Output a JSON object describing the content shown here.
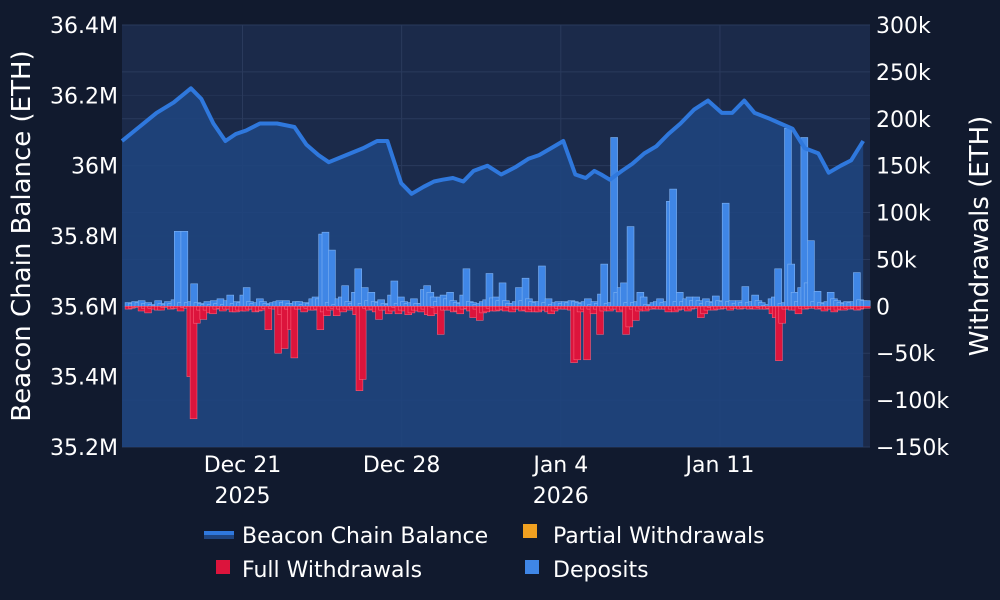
{
  "chart_data": {
    "type": "bar+area",
    "title": "",
    "x_type": "date",
    "x_start": "2025-12-16",
    "x_end": "2026-01-17",
    "x_ticks": [
      {
        "date": "2025-12-21",
        "label": "Dec 21",
        "sublabel": "2025"
      },
      {
        "date": "2025-12-28",
        "label": "Dec 28",
        "sublabel": ""
      },
      {
        "date": "2026-01-04",
        "label": "Jan 4",
        "sublabel": "2026"
      },
      {
        "date": "2026-01-11",
        "label": "Jan 11",
        "sublabel": ""
      }
    ],
    "y_left": {
      "label": "Beacon Chain Balance (ETH)",
      "range": [
        35.2,
        36.4
      ],
      "ticks": [
        36.4,
        36.2,
        36.0,
        35.8,
        35.6,
        35.4,
        35.2
      ],
      "tick_labels": [
        "36.4M",
        "36.2M",
        "36M",
        "35.8M",
        "35.6M",
        "35.4M",
        "35.2M"
      ]
    },
    "y_right": {
      "label": "Withdrawals (ETH)",
      "range": [
        -150,
        300
      ],
      "ticks": [
        300,
        250,
        200,
        150,
        100,
        50,
        0,
        -50,
        -100,
        -150
      ],
      "tick_labels": [
        "300k",
        "250k",
        "200k",
        "150k",
        "100k",
        "50k",
        "0",
        "−50k",
        "−100k",
        "−150k"
      ]
    },
    "balance_series": {
      "name": "Beacon Chain Balance",
      "unit": "M ETH",
      "day_offsets": [
        0,
        1,
        2,
        3,
        4,
        4.6,
        5.3,
        6.0,
        6.6,
        7.2,
        8,
        9,
        10,
        10.7,
        11.4,
        12,
        13,
        14,
        14.8,
        15.4,
        16.2,
        16.8,
        17.5,
        18.1,
        18.6,
        19.2,
        19.8,
        20.4,
        21.2,
        22,
        22.8,
        23.6,
        24.2,
        24.9,
        25.6,
        26.3,
        26.9,
        27.4,
        27.8,
        28.3,
        29,
        29.6,
        30.3,
        31,
        31.7,
        32.4,
        33.2,
        34,
        34.8,
        35.4,
        36.1,
        36.7,
        37.5,
        38.2,
        38.9,
        39.6,
        40.4,
        41,
        41.7,
        42.3,
        43
      ],
      "values": [
        36.07,
        36.11,
        36.15,
        36.18,
        36.22,
        36.19,
        36.12,
        36.07,
        36.09,
        36.1,
        36.12,
        36.12,
        36.11,
        36.06,
        36.03,
        36.01,
        36.03,
        36.05,
        36.07,
        36.07,
        35.95,
        35.92,
        35.94,
        35.955,
        35.96,
        35.965,
        35.955,
        35.985,
        36.0,
        35.975,
        35.995,
        36.02,
        36.03,
        36.05,
        36.07,
        35.975,
        35.965,
        35.985,
        35.975,
        35.96,
        35.985,
        36.005,
        36.035,
        36.055,
        36.09,
        36.12,
        36.16,
        36.185,
        36.15,
        36.15,
        36.185,
        36.15,
        36.135,
        36.12,
        36.105,
        36.05,
        36.035,
        35.98,
        36.0,
        36.015,
        36.07
      ]
    },
    "bars": {
      "x_offset_start": -0.3,
      "step": 0.42,
      "deposits_k": [
        5,
        3,
        4,
        3,
        5,
        4,
        6,
        3,
        4,
        2,
        1,
        6,
        3,
        2,
        5,
        3,
        7,
        80,
        4,
        80,
        4,
        5,
        24,
        4,
        3,
        2,
        5,
        2,
        6,
        3,
        8,
        2,
        6,
        12,
        3,
        5,
        4,
        12,
        20,
        5,
        3,
        4,
        8,
        5,
        3,
        2,
        4,
        5,
        6,
        4,
        6,
        3,
        3,
        5,
        5,
        2,
        4,
        3,
        8,
        10,
        8,
        77,
        79,
        4,
        60,
        2,
        8,
        10,
        22,
        5,
        3,
        15,
        40,
        3,
        20,
        6,
        15,
        5,
        4,
        7,
        3,
        2,
        12,
        27,
        3,
        10,
        5,
        3,
        4,
        8,
        3,
        3,
        18,
        22,
        15,
        10,
        5,
        10,
        12,
        8,
        15,
        6,
        4,
        3,
        12,
        40,
        5,
        4,
        2,
        3,
        5,
        7,
        35,
        9,
        10,
        6,
        25,
        6,
        3,
        3,
        5,
        20,
        6,
        30,
        8,
        5,
        4,
        5,
        43,
        4,
        8,
        2,
        4,
        5,
        3,
        5,
        4,
        6,
        5,
        4,
        3,
        5,
        8,
        2,
        5,
        3,
        13,
        45,
        3,
        4,
        180,
        15,
        20,
        25,
        4,
        85,
        4,
        5,
        15,
        10,
        2,
        1,
        4,
        5,
        8,
        4,
        5,
        112,
        125,
        5,
        15,
        5,
        8,
        10,
        6,
        10,
        6,
        3,
        8,
        5,
        4,
        11,
        6,
        5,
        110,
        5,
        6,
        3,
        6,
        4,
        21,
        4,
        5,
        12,
        6,
        4,
        1,
        2,
        8,
        10,
        40,
        3,
        4,
        190,
        45,
        15,
        5,
        20,
        180,
        25,
        70,
        5,
        16,
        4,
        3,
        5,
        15,
        8,
        6,
        4,
        3,
        5,
        4,
        5,
        36,
        7,
        6,
        6
      ],
      "full_withdrawals_k": [
        -3,
        -2,
        -3,
        -2,
        -1,
        -1,
        -5,
        -2,
        -7,
        -2,
        -3,
        -4,
        -4,
        -1,
        -1,
        -3,
        -2,
        -2,
        -5,
        -1,
        -2,
        -75,
        -120,
        -18,
        -4,
        -14,
        -4,
        -7,
        -8,
        -3,
        -2,
        -5,
        -3,
        -3,
        -6,
        -6,
        -4,
        -5,
        -5,
        -3,
        -3,
        -6,
        -5,
        -4,
        -2,
        -25,
        -2,
        -3,
        -50,
        -9,
        -45,
        -3,
        -25,
        -55,
        -3,
        -3,
        -6,
        -2,
        -4,
        -4,
        -3,
        -25,
        -6,
        -10,
        -4,
        -2,
        -10,
        -3,
        -6,
        -3,
        -4,
        -2,
        -9,
        -90,
        -78,
        -2,
        -4,
        -3,
        -6,
        -14,
        -4,
        -4,
        -8,
        -5,
        -1,
        -8,
        -4,
        -5,
        -9,
        -7,
        -4,
        -5,
        -6,
        -3,
        -9,
        -10,
        -1,
        -8,
        -30,
        -4,
        -4,
        -4,
        -6,
        -5,
        -8,
        -3,
        -2,
        -5,
        -12,
        -3,
        -15,
        -7,
        -6,
        -2,
        -5,
        -5,
        -4,
        -3,
        -5,
        -1,
        -6,
        -3,
        -3,
        -5,
        -4,
        -6,
        -3,
        -6,
        -6,
        -4,
        -4,
        -6,
        -8,
        -5,
        -2,
        -3,
        -3,
        -3,
        -4,
        -60,
        -57,
        -6,
        -3,
        -57,
        -3,
        -8,
        -3,
        -30,
        -5,
        -3,
        -5,
        -3,
        -3,
        -6,
        -4,
        -30,
        -22,
        -3,
        -15,
        -5,
        -3,
        -5,
        -3,
        -3,
        -2,
        -3,
        -3,
        -3,
        -6,
        -3,
        -6,
        -4,
        -3,
        -3,
        -5,
        -3,
        -2,
        -2,
        -12,
        -8,
        -4,
        -1,
        -4,
        -3,
        -3,
        -2,
        -2,
        -4,
        -2,
        -2,
        -3,
        -2,
        -2,
        -3,
        -2,
        -3,
        -1,
        -3,
        -3,
        -2,
        -8,
        -12,
        -58,
        -18,
        -3,
        -3,
        -4,
        -4,
        -8,
        -2,
        -3,
        -2,
        -2,
        -2,
        -3,
        -2,
        -5,
        -3,
        -3,
        -6,
        -4,
        -3,
        -4,
        -2,
        -3,
        -2,
        -4,
        -3,
        -2,
        -2
      ],
      "partial_withdrawals_k_note": "partial withdrawals series not visibly distinguishable (near zero)"
    },
    "legend": [
      {
        "name": "Beacon Chain Balance",
        "color": "#3a7bd5",
        "type": "line"
      },
      {
        "name": "Partial Withdrawals",
        "color": "#f0a020",
        "type": "bar"
      },
      {
        "name": "Full Withdrawals",
        "color": "#dc143c",
        "type": "bar"
      },
      {
        "name": "Deposits",
        "color": "#3a7bd5",
        "type": "bar"
      }
    ],
    "legend_position": "bottom-center"
  },
  "colors": {
    "background": "#111a2e",
    "plot": "#1b2a4a",
    "area": "#1f4580",
    "line": "#2f78dd",
    "deposit": "#3f86e6",
    "full_withdrawal": "#dc143c",
    "partial_withdrawal": "#f0a020"
  }
}
